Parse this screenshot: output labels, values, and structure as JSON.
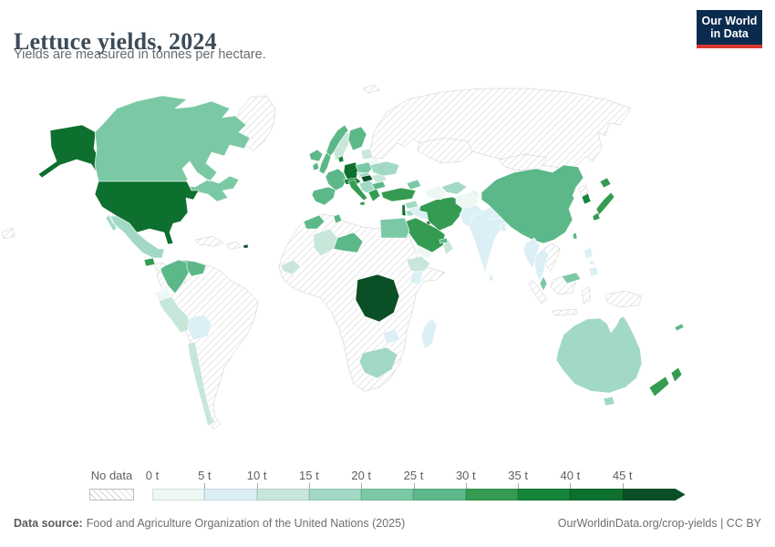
{
  "header": {
    "title": "Lettuce yields, 2024",
    "subtitle": "Yields are measured in tonnes per hectare."
  },
  "logo": {
    "line1": "Our World",
    "line2": "in Data",
    "bg_color": "#0a2a4e",
    "accent_color": "#dc372e"
  },
  "chart_data": {
    "type": "heatmap",
    "subtype": "choropleth-world-map",
    "title": "Lettuce yields, 2024",
    "unit": "tonnes per hectare",
    "legend_position": "bottom",
    "bins": [
      "0-5 t",
      "5-10 t",
      "10-15 t",
      "15-20 t",
      "20-25 t",
      "25-30 t",
      "30-35 t",
      "35-40 t",
      "40-45 t",
      "45+ t"
    ],
    "bin_colors": [
      "#edf8f4",
      "#dceff6",
      "#c8e7da",
      "#a2d9c4",
      "#7bc9a4",
      "#5cb888",
      "#359b52",
      "#15853c",
      "#0d702e",
      "#0b4f26"
    ],
    "no_data_style": "gray diagonal hatching"
  },
  "legend": {
    "no_data_label": "No data",
    "tick_labels": [
      "0 t",
      "5 t",
      "10 t",
      "15 t",
      "20 t",
      "25 t",
      "30 t",
      "35 t",
      "40 t",
      "45 t"
    ],
    "scale_colors": [
      "#edf8f4",
      "#dceff6",
      "#c8e7da",
      "#a2d9c4",
      "#7bc9a4",
      "#5cb888",
      "#359b52",
      "#15853c",
      "#0d702e",
      "#0b4f26"
    ]
  },
  "map": {
    "countries": {
      "usa": 8,
      "canada": 4,
      "mexico": 3,
      "guatemala": 6,
      "puerto_rico": 9,
      "colombia": 5,
      "venezuela": 5,
      "ecuador": 0,
      "peru": 2,
      "bolivia": 1,
      "chile": 2,
      "iceland": 5,
      "uk": 5,
      "ireland": 5,
      "norway": 5,
      "sweden": 2,
      "finland": 5,
      "denmark": 7,
      "germany": 8,
      "france": 5,
      "spain_portugal": 5,
      "italy": 6,
      "switzerland_austria": 7,
      "czechia": 2,
      "poland": 4,
      "hungary": 9,
      "slovakia": 3,
      "balkans": 3,
      "greece": 6,
      "romania": 2,
      "bulgaria": 5,
      "baltics": 2,
      "belarus": 0,
      "ukraine": 3,
      "turkey": 6,
      "caucasus": 4,
      "morocco": 5,
      "tunisia": 5,
      "egypt": 4,
      "mali": 2,
      "niger": 5,
      "senegal_guinea": 2,
      "ethiopia": 2,
      "kenya": 1,
      "drc": 9,
      "zimbabwe": 1,
      "south_africa": 3,
      "madagascar": 1,
      "israel": 8,
      "jordan": 3,
      "syria": 3,
      "iraq": 1,
      "kuwait": 9,
      "saudi_arabia": 6,
      "yemen": 0,
      "oman": 2,
      "uae": 5,
      "iran": 6,
      "turkmenistan": 0,
      "uzbekistan": 3,
      "kyrgyzstan_tajikistan": 1,
      "afghanistan": 0,
      "pakistan": 1,
      "india": 1,
      "nepal": 1,
      "bangladesh": 1,
      "sri_lanka": 1,
      "china": 5,
      "japan": 6,
      "south_korea": 7,
      "taiwan": 5,
      "myanmar": 1,
      "thailand": 1,
      "malaysia": 4,
      "philippines": 1,
      "australia": 3,
      "new_zealand": 6,
      "new_caledonia": 5,
      "greenland": null,
      "russia": null,
      "kazakhstan": null,
      "mongolia": null,
      "north_korea": null,
      "cuba": null,
      "hispaniola": null,
      "central_america": null,
      "south_america_nodata": null,
      "africa_nodata": null,
      "indonesia": null,
      "papua_new_guinea": null,
      "laos_vietnam": null,
      "svalbard": null,
      "chukotka": null
    }
  },
  "footer": {
    "source_label": "Data source:",
    "source_text": "Food and Agriculture Organization of the United Nations (2025)",
    "url_license": "OurWorldinData.org/crop-yields | CC BY"
  }
}
